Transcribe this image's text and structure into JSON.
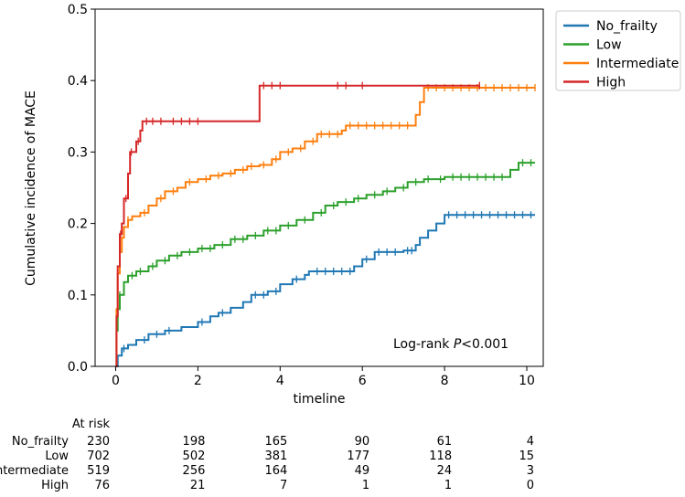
{
  "chart_data": {
    "type": "line",
    "subtype": "kaplan-meier cumulative incidence",
    "title": "",
    "xlabel": "timeline",
    "ylabel": "Cumulative incidence of MACE",
    "xlim": [
      -0.5,
      10.4
    ],
    "ylim": [
      0,
      0.5
    ],
    "xticks": [
      0,
      2,
      4,
      6,
      8,
      10
    ],
    "yticks": [
      0.0,
      0.1,
      0.2,
      0.3,
      0.4,
      0.5
    ],
    "ytick_labels": [
      "0.0",
      "0.1",
      "0.2",
      "0.3",
      "0.4",
      "0.5"
    ],
    "legend_position": "outside top-right",
    "annotation": {
      "prefix": "Log-rank ",
      "italic": "P",
      "suffix": "<0.001"
    },
    "series": [
      {
        "name": "No_frailty",
        "color": "#1f77b4",
        "points": [
          [
            0,
            0
          ],
          [
            0.05,
            0.015
          ],
          [
            0.15,
            0.025
          ],
          [
            0.3,
            0.03
          ],
          [
            0.5,
            0.037
          ],
          [
            0.8,
            0.045
          ],
          [
            1.2,
            0.05
          ],
          [
            1.6,
            0.055
          ],
          [
            2.0,
            0.062
          ],
          [
            2.3,
            0.07
          ],
          [
            2.5,
            0.075
          ],
          [
            2.8,
            0.082
          ],
          [
            3.1,
            0.09
          ],
          [
            3.3,
            0.1
          ],
          [
            3.7,
            0.105
          ],
          [
            4.0,
            0.115
          ],
          [
            4.3,
            0.122
          ],
          [
            4.6,
            0.128
          ],
          [
            4.7,
            0.133
          ],
          [
            5.0,
            0.133
          ],
          [
            5.8,
            0.14
          ],
          [
            6.0,
            0.15
          ],
          [
            6.3,
            0.16
          ],
          [
            7.0,
            0.162
          ],
          [
            7.3,
            0.17
          ],
          [
            7.4,
            0.18
          ],
          [
            7.6,
            0.19
          ],
          [
            7.8,
            0.2
          ],
          [
            8.0,
            0.212
          ],
          [
            10.2,
            0.212
          ]
        ],
        "end": 10.2,
        "censor_x": [
          0.2,
          0.7,
          1.0,
          1.3,
          2.1,
          2.6,
          3.4,
          3.6,
          3.9,
          4.4,
          4.9,
          5.1,
          5.3,
          5.5,
          5.7,
          6.1,
          6.4,
          6.6,
          6.8,
          7.1,
          7.2,
          8.1,
          8.3,
          8.5,
          8.7,
          8.9,
          9.1,
          9.3,
          9.5,
          9.7,
          9.9,
          10.1
        ]
      },
      {
        "name": "Low",
        "color": "#2ca02c",
        "points": [
          [
            0,
            0
          ],
          [
            0.02,
            0.05
          ],
          [
            0.05,
            0.08
          ],
          [
            0.1,
            0.1
          ],
          [
            0.2,
            0.118
          ],
          [
            0.3,
            0.127
          ],
          [
            0.5,
            0.133
          ],
          [
            0.8,
            0.14
          ],
          [
            1.0,
            0.148
          ],
          [
            1.3,
            0.155
          ],
          [
            1.6,
            0.16
          ],
          [
            2.0,
            0.165
          ],
          [
            2.4,
            0.17
          ],
          [
            2.8,
            0.178
          ],
          [
            3.2,
            0.183
          ],
          [
            3.6,
            0.19
          ],
          [
            4.0,
            0.197
          ],
          [
            4.4,
            0.205
          ],
          [
            4.8,
            0.215
          ],
          [
            5.1,
            0.225
          ],
          [
            5.4,
            0.23
          ],
          [
            5.8,
            0.235
          ],
          [
            6.1,
            0.24
          ],
          [
            6.5,
            0.245
          ],
          [
            6.8,
            0.25
          ],
          [
            7.1,
            0.258
          ],
          [
            7.5,
            0.262
          ],
          [
            8.0,
            0.265
          ],
          [
            9.5,
            0.265
          ],
          [
            9.6,
            0.275
          ],
          [
            9.8,
            0.285
          ],
          [
            10.2,
            0.285
          ]
        ],
        "end": 10.2,
        "censor_x": [
          0.1,
          0.4,
          0.6,
          0.9,
          1.2,
          1.5,
          1.8,
          2.1,
          2.3,
          2.6,
          2.9,
          3.1,
          3.4,
          3.7,
          3.9,
          4.2,
          4.6,
          5.0,
          5.3,
          5.6,
          5.9,
          6.3,
          6.6,
          7.0,
          7.3,
          7.6,
          7.9,
          8.2,
          8.4,
          8.6,
          8.8,
          9.0,
          9.2,
          9.4,
          9.9,
          10.1
        ]
      },
      {
        "name": "Intermediate",
        "color": "#ff7f0e",
        "points": [
          [
            0,
            0
          ],
          [
            0.02,
            0.08
          ],
          [
            0.05,
            0.13
          ],
          [
            0.1,
            0.16
          ],
          [
            0.15,
            0.18
          ],
          [
            0.2,
            0.195
          ],
          [
            0.3,
            0.205
          ],
          [
            0.4,
            0.21
          ],
          [
            0.6,
            0.215
          ],
          [
            0.8,
            0.225
          ],
          [
            1.0,
            0.235
          ],
          [
            1.2,
            0.245
          ],
          [
            1.5,
            0.25
          ],
          [
            1.7,
            0.258
          ],
          [
            2.0,
            0.262
          ],
          [
            2.3,
            0.267
          ],
          [
            2.6,
            0.27
          ],
          [
            2.9,
            0.275
          ],
          [
            3.2,
            0.28
          ],
          [
            3.5,
            0.282
          ],
          [
            3.8,
            0.29
          ],
          [
            4.0,
            0.3
          ],
          [
            4.3,
            0.305
          ],
          [
            4.6,
            0.315
          ],
          [
            4.9,
            0.325
          ],
          [
            5.5,
            0.33
          ],
          [
            5.6,
            0.337
          ],
          [
            7.2,
            0.337
          ],
          [
            7.3,
            0.352
          ],
          [
            7.4,
            0.37
          ],
          [
            7.5,
            0.39
          ],
          [
            10.2,
            0.39
          ]
        ],
        "end": 10.2,
        "censor_x": [
          0.3,
          0.7,
          1.1,
          1.4,
          1.8,
          2.2,
          2.5,
          2.8,
          3.1,
          3.3,
          3.6,
          3.9,
          4.2,
          4.5,
          4.8,
          5.0,
          5.2,
          5.4,
          5.7,
          5.9,
          6.1,
          6.3,
          6.5,
          6.7,
          6.9,
          7.1,
          7.6,
          7.8,
          8.0,
          8.2,
          8.4,
          8.6,
          8.8,
          9.0,
          9.2,
          9.4,
          9.6,
          9.8,
          10.0,
          10.2
        ]
      },
      {
        "name": "High",
        "color": "#d62728",
        "points": [
          [
            0,
            0
          ],
          [
            0.02,
            0.07
          ],
          [
            0.05,
            0.14
          ],
          [
            0.1,
            0.185
          ],
          [
            0.15,
            0.2
          ],
          [
            0.2,
            0.235
          ],
          [
            0.3,
            0.27
          ],
          [
            0.35,
            0.3
          ],
          [
            0.5,
            0.315
          ],
          [
            0.6,
            0.33
          ],
          [
            0.65,
            0.343
          ],
          [
            3.5,
            0.343
          ],
          [
            3.5,
            0.393
          ],
          [
            8.85,
            0.393
          ]
        ],
        "end": 8.85,
        "censor_x": [
          0.12,
          0.25,
          0.38,
          0.55,
          0.75,
          0.9,
          1.1,
          1.4,
          1.6,
          1.8,
          2.0,
          3.6,
          3.8,
          4.0,
          5.4,
          5.6,
          6.0,
          8.85
        ]
      }
    ],
    "at_risk": {
      "header": "At risk",
      "times": [
        0,
        2,
        4,
        6,
        8,
        10
      ],
      "rows": [
        {
          "label": "No_frailty",
          "values": [
            "230",
            "198",
            "165",
            "90",
            "61",
            "4"
          ]
        },
        {
          "label": "Low",
          "values": [
            "702",
            "502",
            "381",
            "177",
            "118",
            "15"
          ]
        },
        {
          "label": "Intermediate",
          "values": [
            "519",
            "256",
            "164",
            "49",
            "24",
            "3"
          ]
        },
        {
          "label": "High",
          "values": [
            "76",
            "21",
            "7",
            "1",
            "1",
            "0"
          ]
        }
      ]
    }
  }
}
